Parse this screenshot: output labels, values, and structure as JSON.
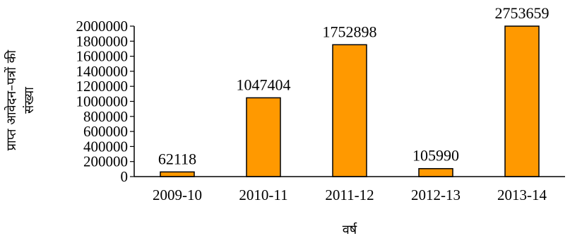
{
  "chart_data": {
    "type": "bar",
    "title": "",
    "xlabel": "वर्ष",
    "ylabel": "प्राप्त आवेदन–पत्रों की संख्या",
    "categories": [
      "2009-10",
      "2010-11",
      "2011-12",
      "2012-13",
      "2013-14"
    ],
    "values": [
      62118,
      1047404,
      1752898,
      105990,
      2753659
    ],
    "data_labels": [
      "62118",
      "1047404",
      "1752898",
      "105990",
      "2753659"
    ],
    "ylim": [
      0,
      2000000
    ],
    "yticks": [
      0,
      200000,
      400000,
      600000,
      800000,
      1000000,
      1200000,
      1400000,
      1600000,
      1800000,
      2000000
    ],
    "ytick_labels": [
      "0",
      "200000",
      "400000",
      "600000",
      "800000",
      "1000000",
      "1200000",
      "1400000",
      "1600000",
      "1800000",
      "2000000"
    ],
    "bar_color": "#FF9900",
    "bar_edge_color": "#000000",
    "grid": false,
    "legend": false
  }
}
